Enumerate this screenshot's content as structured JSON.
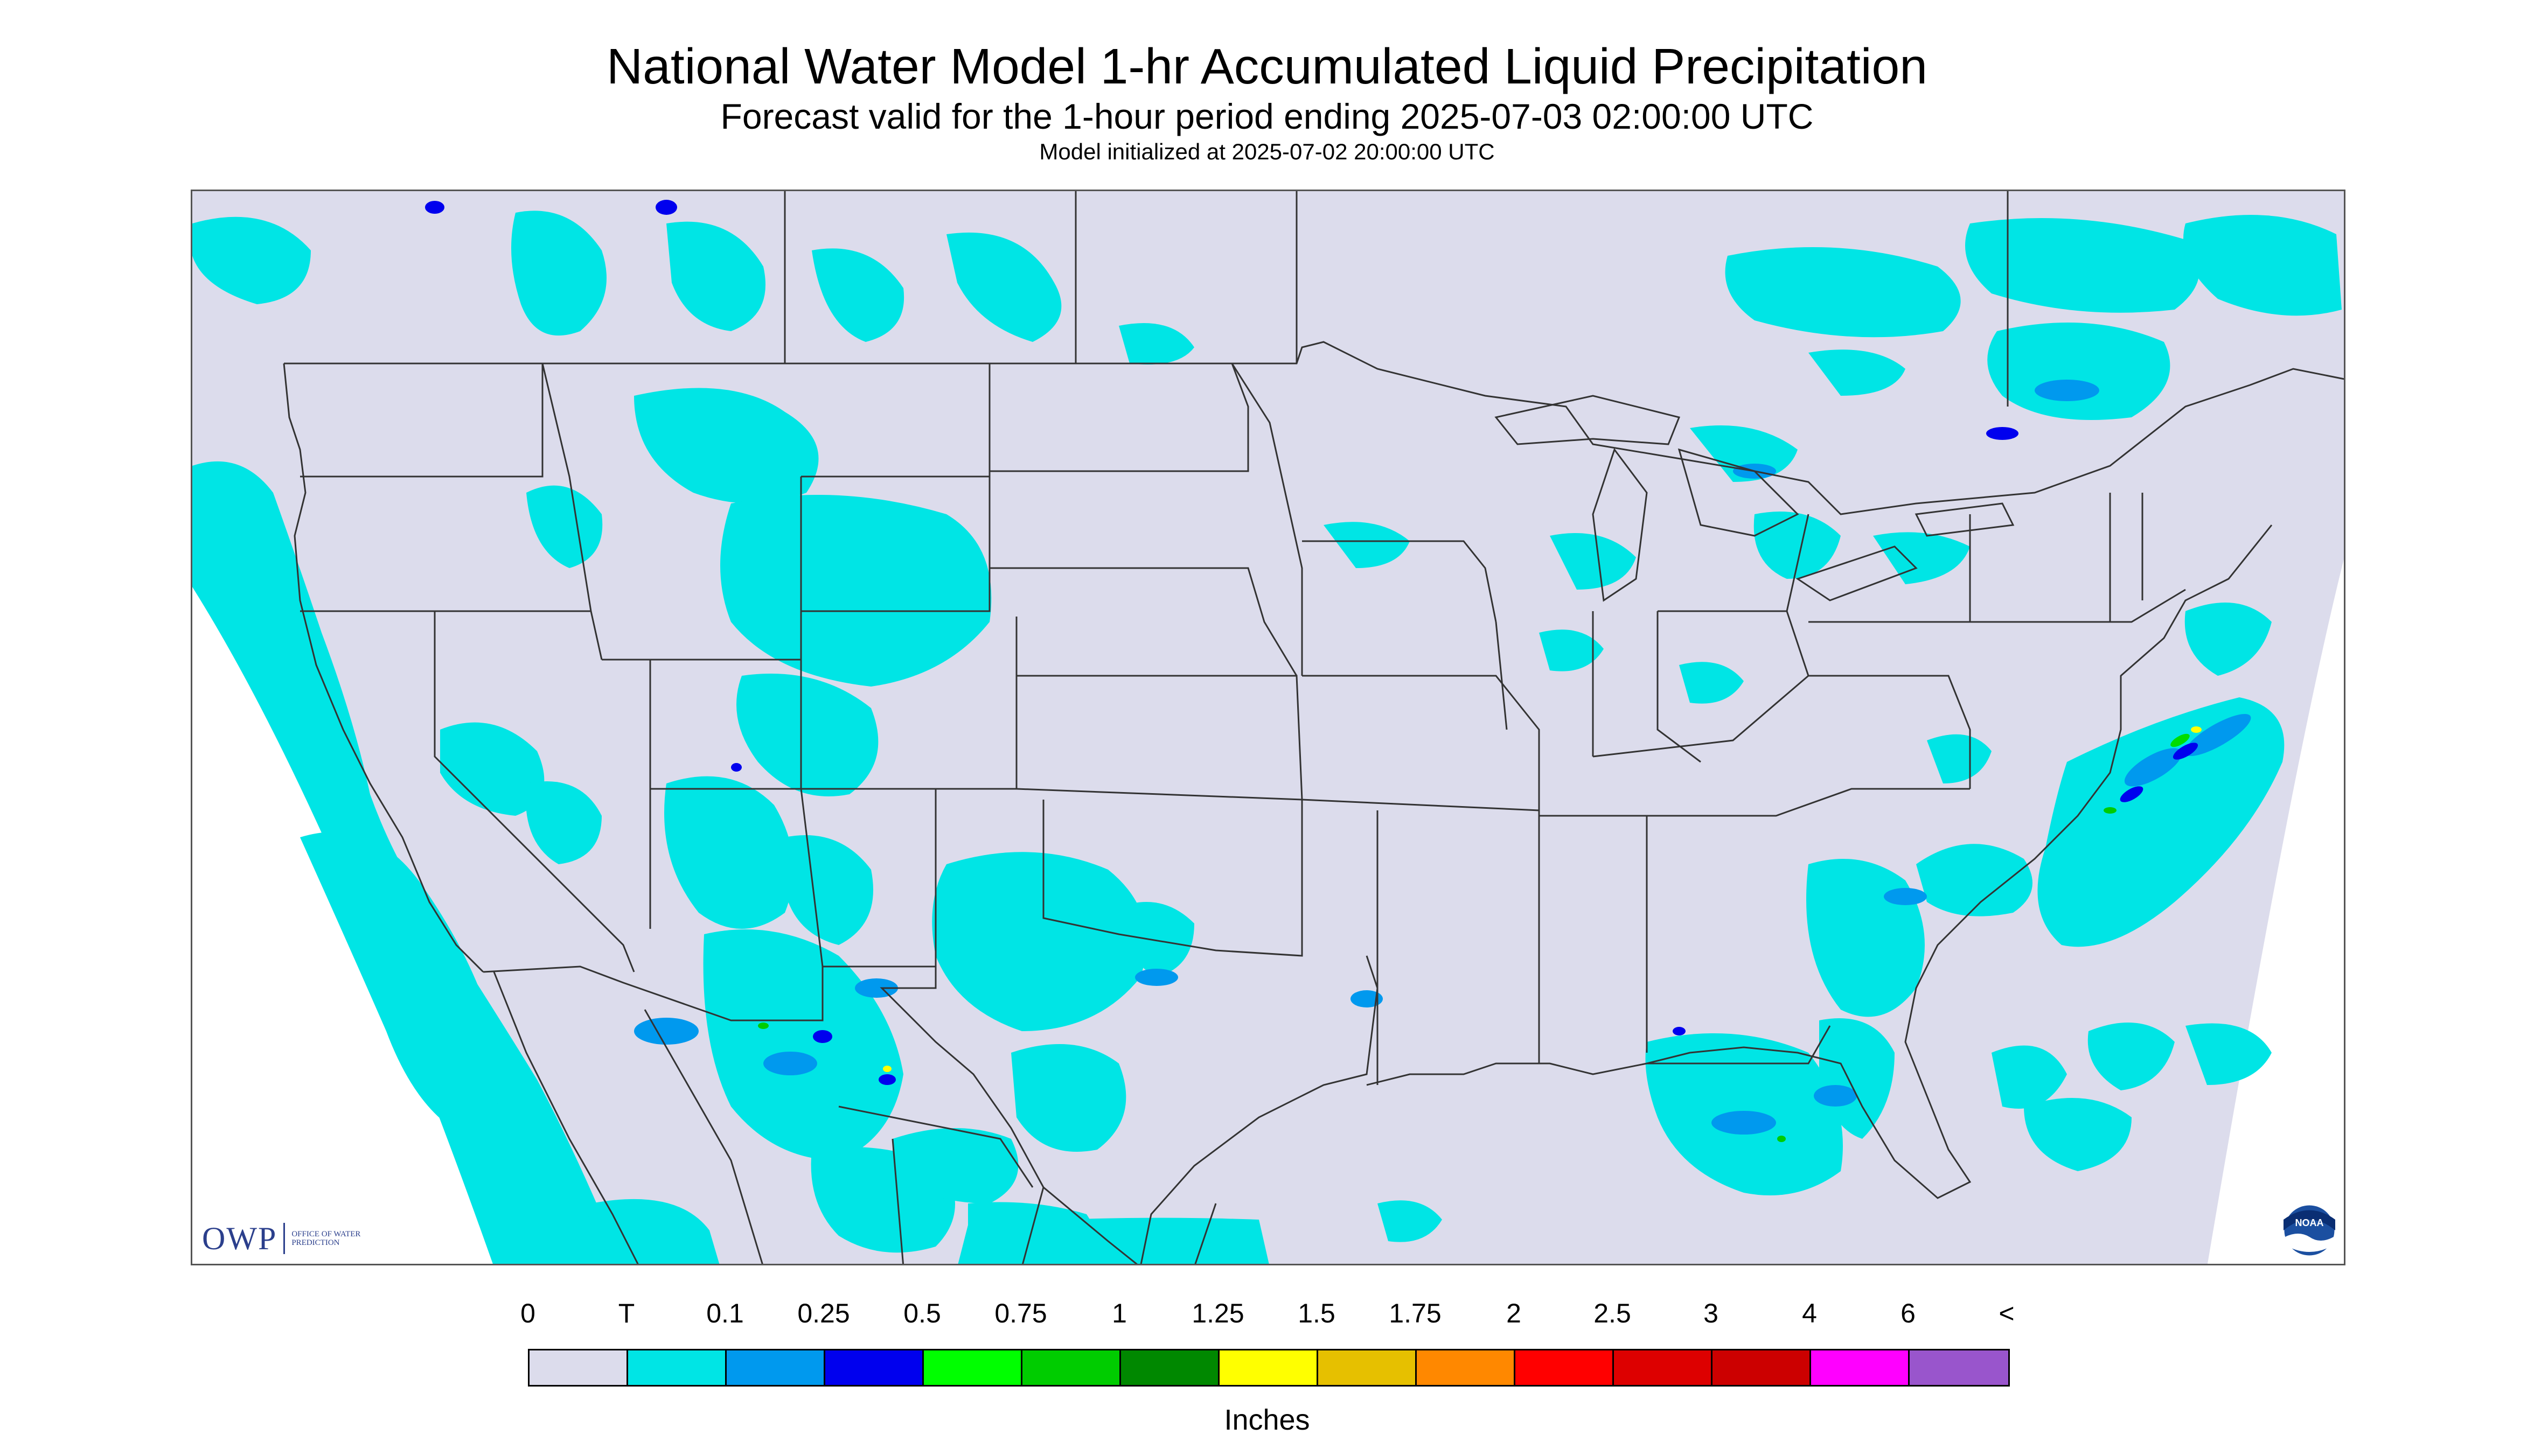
{
  "header": {
    "title": "National Water Model 1-hr Accumulated Liquid Precipitation",
    "subtitle": "Forecast valid for the 1-hour period ending 2025-07-03 02:00:00 UTC",
    "init_line": "Model initialized at 2025-07-02 20:00:00 UTC"
  },
  "map": {
    "region": "CONUS",
    "background_color": "#dcdcec",
    "outside_color": "#ffffff",
    "border_color": "#333333",
    "precip_color_trace": "#00e5e5",
    "precip_color_light": "#0099ee",
    "precip_color_moderate": "#0000ee",
    "precip_color_heavy": "#00dd00",
    "precip_color_yellow": "#ffff00"
  },
  "logos": {
    "owp_text": "OWP",
    "owp_sub": "OFFICE OF WATER PREDICTION",
    "noaa_text": "NOAA"
  },
  "legend": {
    "labels": [
      "0",
      "T",
      "0.1",
      "0.25",
      "0.5",
      "0.75",
      "1",
      "1.25",
      "1.5",
      "1.75",
      "2",
      "2.5",
      "3",
      "4",
      "6",
      "<"
    ],
    "colors": [
      "#dcdcec",
      "#00e5e5",
      "#0099ee",
      "#0000ee",
      "#00ff00",
      "#00cc00",
      "#008800",
      "#ffff00",
      "#e6c000",
      "#ff8800",
      "#ff0000",
      "#dd0000",
      "#cc0000",
      "#ff00ff",
      "#9955cc"
    ],
    "units": "Inches"
  }
}
